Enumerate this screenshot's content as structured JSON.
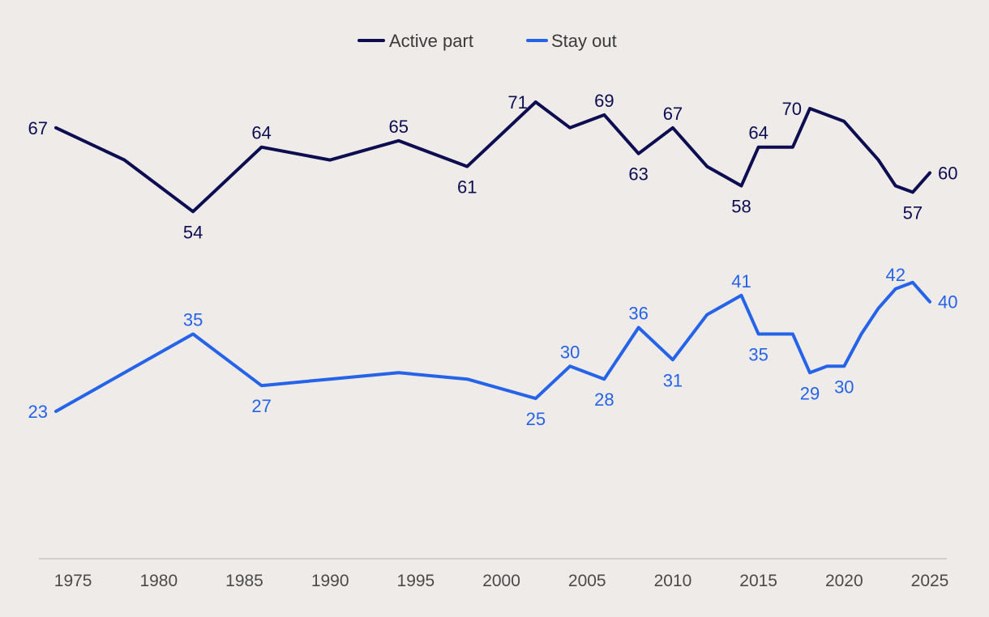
{
  "chart_data": {
    "type": "line",
    "title": "",
    "xlabel": "",
    "ylabel": "",
    "xlim": [
      1974,
      2025
    ],
    "ylim": [
      0,
      80
    ],
    "grid": false,
    "legend_position": "top-center",
    "x_ticks": [
      1975,
      1980,
      1985,
      1990,
      1995,
      2000,
      2005,
      2010,
      2015,
      2020,
      2025
    ],
    "x_tick_labels": [
      "1975",
      "1980",
      "1985",
      "1990",
      "1995",
      "2000",
      "2005",
      "2010",
      "2015",
      "2020",
      "2025"
    ],
    "series": [
      {
        "name": "Active part",
        "color": "#0d0d52",
        "x": [
          1974,
          1978,
          1982,
          1986,
          1990,
          1994,
          1998,
          2002,
          2004,
          2006,
          2008,
          2010,
          2012,
          2014,
          2015,
          2017,
          2018,
          2020,
          2022,
          2023,
          2024,
          2025
        ],
        "values": [
          67,
          62,
          54,
          64,
          62,
          65,
          61,
          71,
          67,
          69,
          63,
          67,
          61,
          58,
          64,
          64,
          70,
          68,
          62,
          58,
          57,
          60
        ],
        "labeled_indices": [
          0,
          2,
          3,
          5,
          6,
          7,
          9,
          10,
          11,
          13,
          14,
          16,
          20,
          21
        ],
        "label_positions": [
          "left",
          "below",
          "above",
          "above",
          "below",
          "left",
          "above",
          "below",
          "above",
          "below",
          "above",
          "left",
          "below",
          "right"
        ]
      },
      {
        "name": "Stay out",
        "color": "#2563e8",
        "x": [
          1974,
          1978,
          1982,
          1986,
          1990,
          1994,
          1998,
          2002,
          2004,
          2006,
          2008,
          2010,
          2012,
          2014,
          2015,
          2017,
          2018,
          2019,
          2020,
          2021,
          2022,
          2023,
          2024,
          2025
        ],
        "values": [
          23,
          29,
          35,
          27,
          28,
          29,
          28,
          25,
          30,
          28,
          36,
          31,
          38,
          41,
          35,
          35,
          29,
          30,
          30,
          35,
          39,
          42,
          43,
          40
        ],
        "labeled_indices": [
          0,
          2,
          3,
          7,
          8,
          9,
          10,
          11,
          13,
          14,
          16,
          18,
          21,
          23
        ],
        "label_positions": [
          "left",
          "above",
          "below",
          "below",
          "above",
          "below",
          "above",
          "below",
          "above",
          "below",
          "below",
          "below",
          "above",
          "right"
        ]
      }
    ]
  }
}
